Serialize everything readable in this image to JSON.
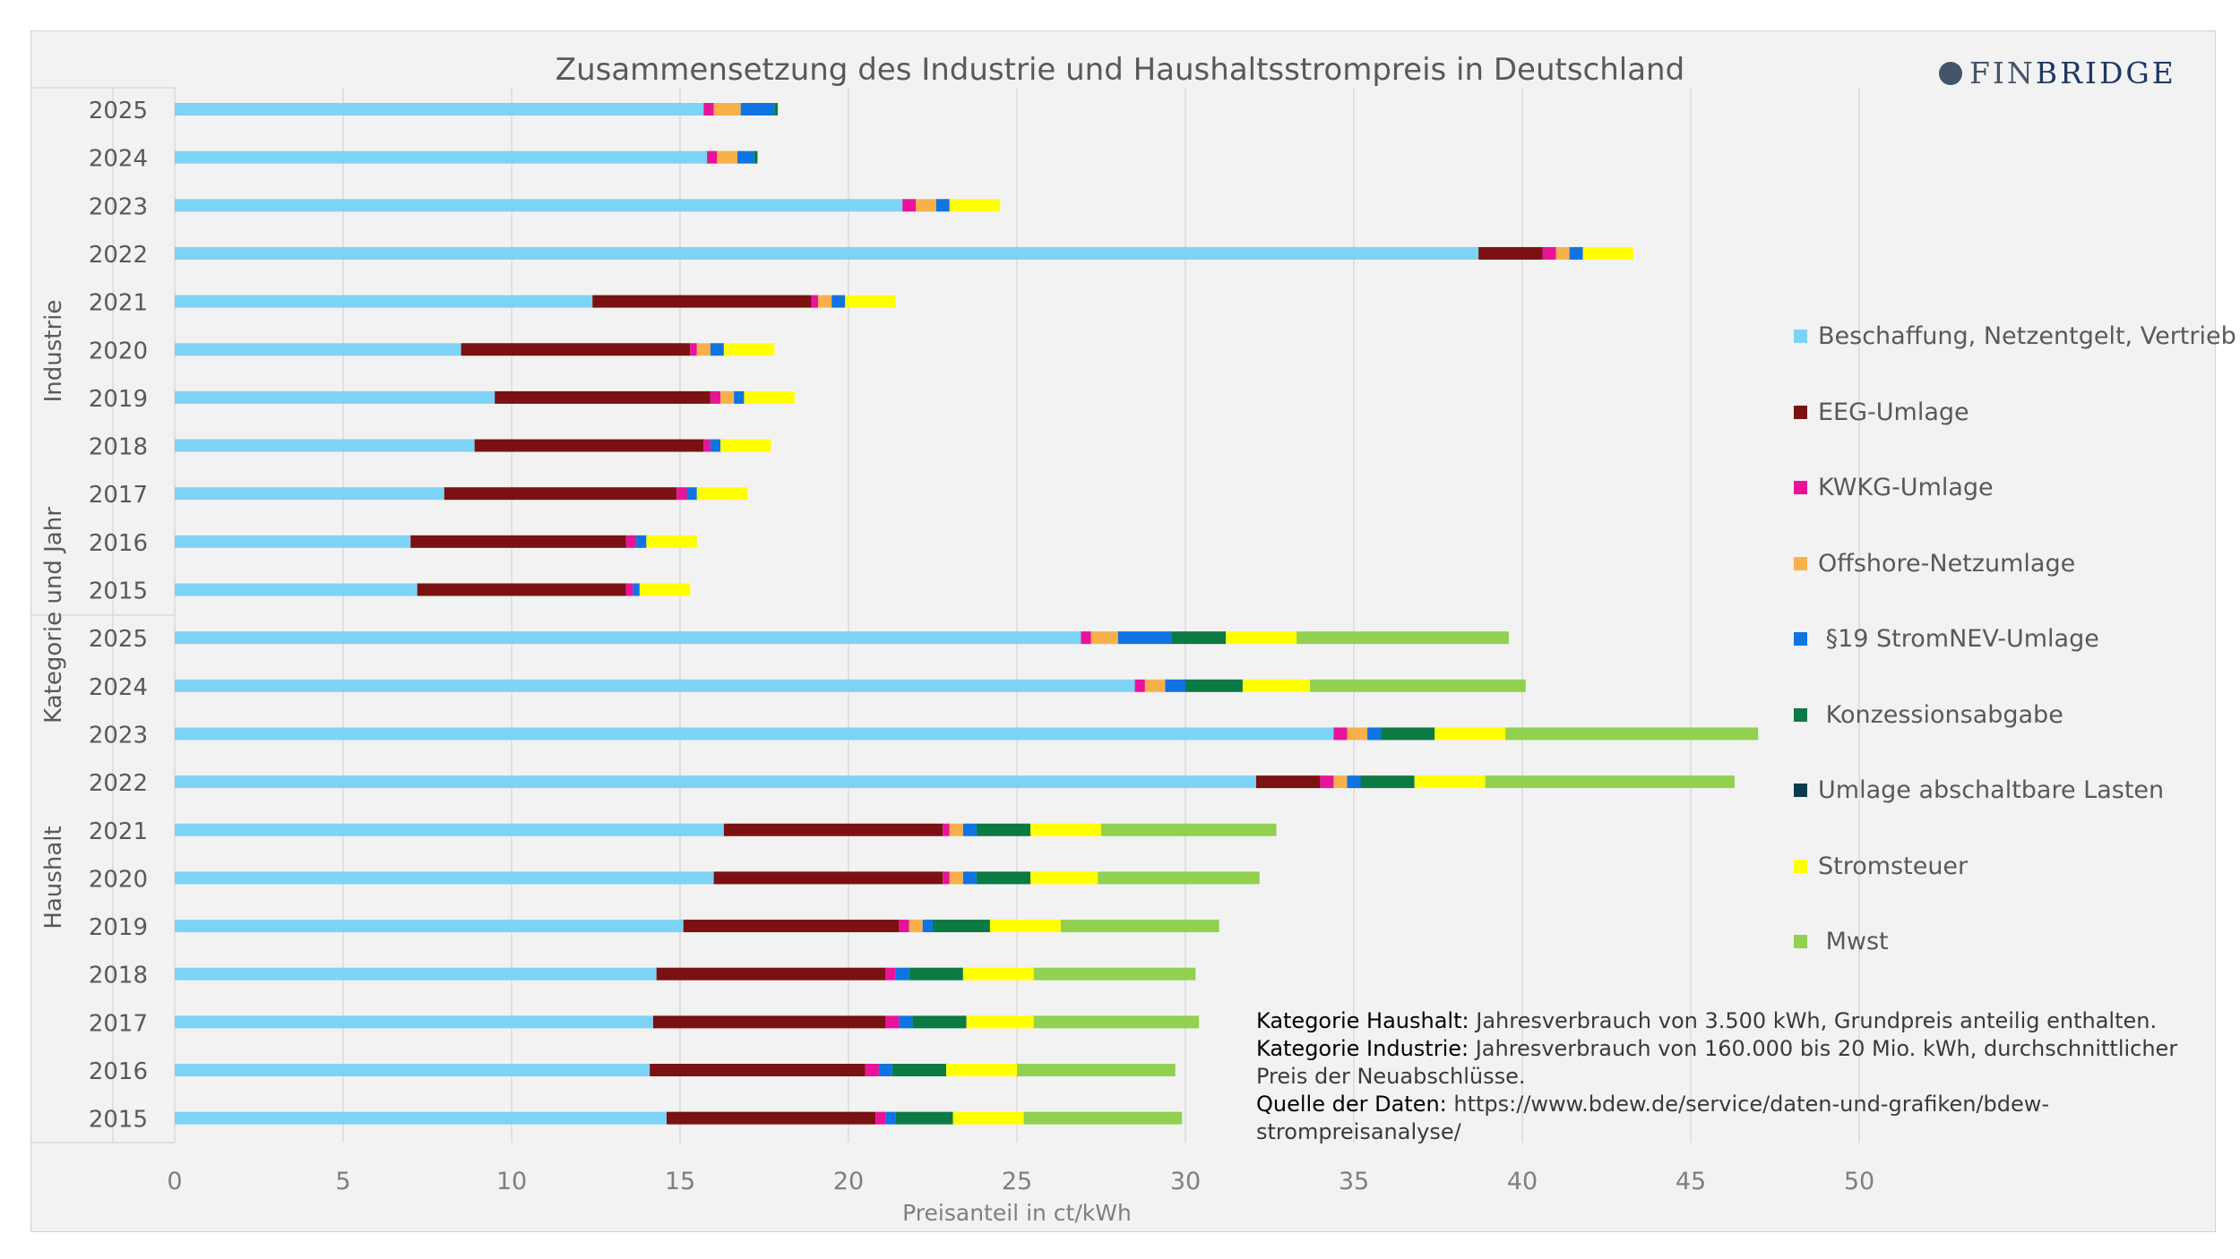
{
  "title": "Zusammensetzung des Industrie und Haushaltsstrompreis in Deutschland",
  "logo": {
    "mark": "finbridge-logo-icon",
    "part1": "FIN",
    "part2": "BRIDGE"
  },
  "colors": {
    "plot_bg": "#f2f2f2",
    "grid": "#d9d9d9",
    "text": "#595959"
  },
  "legend": [
    {
      "label": "Beschaffung, Netzentgelt, Vertrieb",
      "color": "#7dd3f5"
    },
    {
      "label": "EEG-Umlage",
      "color": "#7b1111"
    },
    {
      "label": "KWKG-Umlage",
      "color": "#e8139a"
    },
    {
      "label": "Offshore-Netzumlage",
      "color": "#f8b04a"
    },
    {
      "label": " §19 StromNEV-Umlage",
      "color": "#0f74e2"
    },
    {
      "label": " Konzessionsabgabe",
      "color": "#0b7a45"
    },
    {
      "label": "Umlage abschaltbare Lasten",
      "color": "#0c3b4f"
    },
    {
      "label": "Stromsteuer",
      "color": "#ffff00"
    },
    {
      "label": " Mwst",
      "color": "#92d050"
    }
  ],
  "notes": [
    {
      "key": "Kategorie Haushalt:",
      "text": " Jahresverbrauch von 3.500 kWh, Grundpreis anteilig enthalten."
    },
    {
      "key": "Kategorie Industrie:",
      "text": " Jahresverbrauch von 160.000 bis 20 Mio. kWh, durchschnittlicher Preis der Neuabschlüsse."
    },
    {
      "key": "Quelle der Daten:",
      "text": " https://www.bdew.de/service/daten-und-grafiken/bdew-strompreisanalyse/"
    }
  ],
  "chart_data": {
    "type": "bar",
    "orientation": "horizontal",
    "stacked": true,
    "title": "Zusammensetzung des Industrie und Haushaltsstrompreis in Deutschland",
    "xlabel": "Preisanteil in ct/kWh",
    "ylabel": "Kategorie und Jahr",
    "xlim": [
      0,
      50
    ],
    "xticks": [
      0,
      5,
      10,
      15,
      20,
      25,
      30,
      35,
      40,
      45,
      50
    ],
    "grid": true,
    "legend_position": "right",
    "groups": [
      {
        "name": "Industrie",
        "categories": [
          "2025",
          "2024",
          "2023",
          "2022",
          "2021",
          "2020",
          "2019",
          "2018",
          "2017",
          "2016",
          "2015"
        ]
      },
      {
        "name": "Haushalt",
        "categories": [
          "2025",
          "2024",
          "2023",
          "2022",
          "2021",
          "2020",
          "2019",
          "2018",
          "2017",
          "2016",
          "2015"
        ]
      }
    ],
    "categories": [
      "Industrie 2025",
      "Industrie 2024",
      "Industrie 2023",
      "Industrie 2022",
      "Industrie 2021",
      "Industrie 2020",
      "Industrie 2019",
      "Industrie 2018",
      "Industrie 2017",
      "Industrie 2016",
      "Industrie 2015",
      "Haushalt 2025",
      "Haushalt 2024",
      "Haushalt 2023",
      "Haushalt 2022",
      "Haushalt 2021",
      "Haushalt 2020",
      "Haushalt 2019",
      "Haushalt 2018",
      "Haushalt 2017",
      "Haushalt 2016",
      "Haushalt 2015"
    ],
    "series": [
      {
        "name": "Beschaffung, Netzentgelt, Vertrieb",
        "values": [
          15.7,
          15.8,
          21.6,
          38.7,
          12.4,
          8.5,
          9.5,
          8.9,
          8.0,
          7.0,
          7.2,
          26.9,
          28.5,
          34.4,
          32.1,
          16.3,
          16.0,
          15.1,
          14.3,
          14.2,
          14.1,
          14.6
        ]
      },
      {
        "name": "EEG-Umlage",
        "values": [
          0,
          0,
          0,
          1.9,
          6.5,
          6.8,
          6.4,
          6.8,
          6.9,
          6.4,
          6.2,
          0,
          0,
          0,
          1.9,
          6.5,
          6.8,
          6.4,
          6.8,
          6.9,
          6.4,
          6.2
        ]
      },
      {
        "name": "KWKG-Umlage",
        "values": [
          0.3,
          0.3,
          0.4,
          0.4,
          0.2,
          0.2,
          0.3,
          0.2,
          0.3,
          0.3,
          0.2,
          0.3,
          0.3,
          0.4,
          0.4,
          0.2,
          0.2,
          0.3,
          0.3,
          0.4,
          0.4,
          0.3
        ]
      },
      {
        "name": "Offshore-Netzumlage",
        "values": [
          0.8,
          0.6,
          0.6,
          0.4,
          0.4,
          0.4,
          0.4,
          0.0,
          0.0,
          0.0,
          0.0,
          0.8,
          0.6,
          0.6,
          0.4,
          0.4,
          0.4,
          0.4,
          0.0,
          0.0,
          0.0,
          0.0
        ]
      },
      {
        "name": "§19 StromNEV-Umlage",
        "values": [
          1.0,
          0.5,
          0.4,
          0.4,
          0.4,
          0.4,
          0.3,
          0.3,
          0.3,
          0.3,
          0.2,
          1.6,
          0.6,
          0.4,
          0.4,
          0.4,
          0.4,
          0.3,
          0.4,
          0.4,
          0.4,
          0.3
        ]
      },
      {
        "name": "Konzessionsabgabe",
        "values": [
          0.1,
          0.1,
          0,
          0,
          0,
          0,
          0,
          0,
          0,
          0,
          0,
          1.6,
          1.7,
          1.6,
          1.6,
          1.6,
          1.6,
          1.7,
          1.6,
          1.6,
          1.6,
          1.7
        ]
      },
      {
        "name": "Umlage abschaltbare Lasten",
        "values": [
          0,
          0,
          0,
          0,
          0,
          0,
          0,
          0,
          0,
          0,
          0,
          0,
          0,
          0,
          0,
          0,
          0,
          0,
          0,
          0,
          0,
          0
        ]
      },
      {
        "name": "Stromsteuer",
        "values": [
          0,
          0,
          1.5,
          1.5,
          1.5,
          1.5,
          1.5,
          1.5,
          1.5,
          1.5,
          1.5,
          2.1,
          2.0,
          2.1,
          2.1,
          2.1,
          2.0,
          2.1,
          2.1,
          2.0,
          2.1,
          2.1
        ]
      },
      {
        "name": "Mwst",
        "values": [
          0,
          0,
          0,
          0,
          0,
          0,
          0,
          0,
          0,
          0,
          0,
          6.3,
          6.4,
          7.5,
          7.4,
          5.2,
          4.8,
          4.7,
          4.8,
          4.9,
          4.7,
          4.7
        ]
      }
    ]
  }
}
